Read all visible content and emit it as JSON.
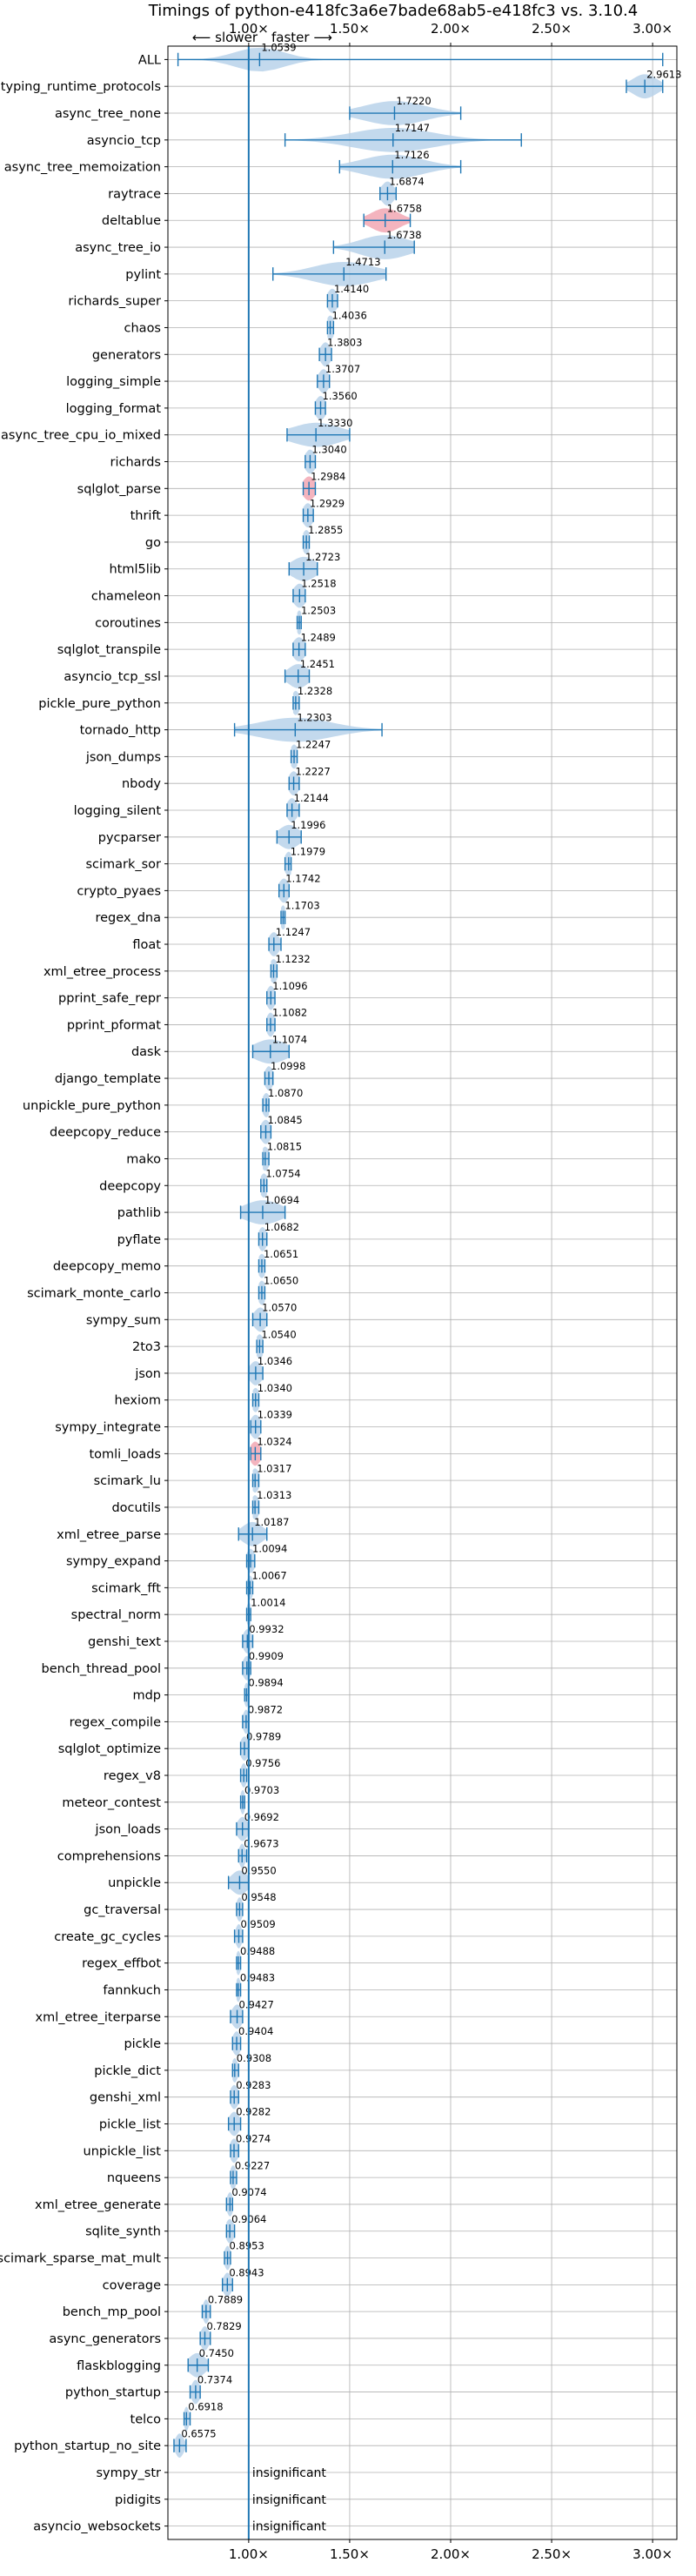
{
  "chart_data": {
    "type": "violin",
    "title": "Timings of python-e418fc3a6e7bade68ab5-e418fc3 vs. 3.10.4",
    "direction_labels": {
      "slower": "⟵ slower",
      "faster": "faster ⟶"
    },
    "xlim": [
      0.6,
      3.12
    ],
    "xticks": [
      1.0,
      1.5,
      2.0,
      2.5,
      3.0
    ],
    "xtick_labels": [
      "1.00×",
      "1.50×",
      "2.00×",
      "2.50×",
      "3.00×"
    ],
    "reference_line": 1.0,
    "grid": true,
    "insignificant_label": "insignificant",
    "colors": {
      "normal": "#1f77b4",
      "normal_fill": "#b9d2ea",
      "regression_fill": "#f2a7b3",
      "grid": "#b0b0b0"
    },
    "benchmarks": [
      {
        "name": "ALL",
        "value": 1.0539,
        "label": "1.0539",
        "min": 0.65,
        "max": 3.05,
        "spread": 0.12
      },
      {
        "name": "typing_runtime_protocols",
        "value": 2.9613,
        "label": "2.9613",
        "min": 2.87,
        "max": 3.05,
        "spread": 0.06
      },
      {
        "name": "async_tree_none",
        "value": 1.722,
        "label": "1.7220",
        "min": 1.5,
        "max": 2.05,
        "spread": 0.15
      },
      {
        "name": "asyncio_tcp",
        "value": 1.7147,
        "label": "1.7147",
        "min": 1.18,
        "max": 2.35,
        "spread": 0.2
      },
      {
        "name": "async_tree_memoization",
        "value": 1.7126,
        "label": "1.7126",
        "min": 1.45,
        "max": 2.05,
        "spread": 0.15
      },
      {
        "name": "raytrace",
        "value": 1.6874,
        "label": "1.6874",
        "min": 1.65,
        "max": 1.73,
        "spread": 0.03
      },
      {
        "name": "deltablue",
        "value": 1.6758,
        "label": "1.6758",
        "min": 1.57,
        "max": 1.8,
        "spread": 0.07,
        "regression": true
      },
      {
        "name": "async_tree_io",
        "value": 1.6738,
        "label": "1.6738",
        "min": 1.42,
        "max": 1.82,
        "spread": 0.12
      },
      {
        "name": "pylint",
        "value": 1.4713,
        "label": "1.4713",
        "min": 1.12,
        "max": 1.68,
        "spread": 0.15
      },
      {
        "name": "richards_super",
        "value": 1.414,
        "label": "1.4140",
        "min": 1.39,
        "max": 1.44,
        "spread": 0.025
      },
      {
        "name": "chaos",
        "value": 1.4036,
        "label": "1.4036",
        "min": 1.39,
        "max": 1.42,
        "spread": 0.02
      },
      {
        "name": "generators",
        "value": 1.3803,
        "label": "1.3803",
        "min": 1.35,
        "max": 1.41,
        "spread": 0.025
      },
      {
        "name": "logging_simple",
        "value": 1.3707,
        "label": "1.3707",
        "min": 1.34,
        "max": 1.4,
        "spread": 0.025
      },
      {
        "name": "logging_format",
        "value": 1.356,
        "label": "1.3560",
        "min": 1.33,
        "max": 1.38,
        "spread": 0.025
      },
      {
        "name": "async_tree_cpu_io_mixed",
        "value": 1.333,
        "label": "1.3330",
        "min": 1.19,
        "max": 1.5,
        "spread": 0.12
      },
      {
        "name": "richards",
        "value": 1.304,
        "label": "1.3040",
        "min": 1.28,
        "max": 1.33,
        "spread": 0.025
      },
      {
        "name": "sqlglot_parse",
        "value": 1.2984,
        "label": "1.2984",
        "min": 1.27,
        "max": 1.33,
        "spread": 0.03,
        "regression": true
      },
      {
        "name": "thrift",
        "value": 1.2929,
        "label": "1.2929",
        "min": 1.27,
        "max": 1.32,
        "spread": 0.025
      },
      {
        "name": "go",
        "value": 1.2855,
        "label": "1.2855",
        "min": 1.27,
        "max": 1.3,
        "spread": 0.02
      },
      {
        "name": "html5lib",
        "value": 1.2723,
        "label": "1.2723",
        "min": 1.2,
        "max": 1.34,
        "spread": 0.06
      },
      {
        "name": "chameleon",
        "value": 1.2518,
        "label": "1.2518",
        "min": 1.22,
        "max": 1.28,
        "spread": 0.03
      },
      {
        "name": "coroutines",
        "value": 1.2503,
        "label": "1.2503",
        "min": 1.24,
        "max": 1.26,
        "spread": 0.015
      },
      {
        "name": "sqlglot_transpile",
        "value": 1.2489,
        "label": "1.2489",
        "min": 1.22,
        "max": 1.28,
        "spread": 0.03
      },
      {
        "name": "asyncio_tcp_ssl",
        "value": 1.2451,
        "label": "1.2451",
        "min": 1.18,
        "max": 1.3,
        "spread": 0.05
      },
      {
        "name": "pickle_pure_python",
        "value": 1.2328,
        "label": "1.2328",
        "min": 1.22,
        "max": 1.25,
        "spread": 0.02
      },
      {
        "name": "tornado_http",
        "value": 1.2303,
        "label": "1.2303",
        "min": 0.93,
        "max": 1.66,
        "spread": 0.18
      },
      {
        "name": "json_dumps",
        "value": 1.2247,
        "label": "1.2247",
        "min": 1.21,
        "max": 1.24,
        "spread": 0.02
      },
      {
        "name": "nbody",
        "value": 1.2227,
        "label": "1.2227",
        "min": 1.2,
        "max": 1.25,
        "spread": 0.025
      },
      {
        "name": "logging_silent",
        "value": 1.2144,
        "label": "1.2144",
        "min": 1.19,
        "max": 1.25,
        "spread": 0.025
      },
      {
        "name": "pycparser",
        "value": 1.1996,
        "label": "1.1996",
        "min": 1.14,
        "max": 1.26,
        "spread": 0.05
      },
      {
        "name": "scimark_sor",
        "value": 1.1979,
        "label": "1.1979",
        "min": 1.18,
        "max": 1.21,
        "spread": 0.02
      },
      {
        "name": "crypto_pyaes",
        "value": 1.1742,
        "label": "1.1742",
        "min": 1.15,
        "max": 1.2,
        "spread": 0.025
      },
      {
        "name": "regex_dna",
        "value": 1.1703,
        "label": "1.1703",
        "min": 1.16,
        "max": 1.18,
        "spread": 0.015
      },
      {
        "name": "float",
        "value": 1.1247,
        "label": "1.1247",
        "min": 1.1,
        "max": 1.16,
        "spread": 0.025
      },
      {
        "name": "xml_etree_process",
        "value": 1.1232,
        "label": "1.1232",
        "min": 1.11,
        "max": 1.14,
        "spread": 0.02
      },
      {
        "name": "pprint_safe_repr",
        "value": 1.1096,
        "label": "1.1096",
        "min": 1.09,
        "max": 1.13,
        "spread": 0.02
      },
      {
        "name": "pprint_pformat",
        "value": 1.1082,
        "label": "1.1082",
        "min": 1.09,
        "max": 1.13,
        "spread": 0.02
      },
      {
        "name": "dask",
        "value": 1.1074,
        "label": "1.1074",
        "min": 1.02,
        "max": 1.2,
        "spread": 0.08
      },
      {
        "name": "django_template",
        "value": 1.0998,
        "label": "1.0998",
        "min": 1.08,
        "max": 1.12,
        "spread": 0.02
      },
      {
        "name": "unpickle_pure_python",
        "value": 1.087,
        "label": "1.0870",
        "min": 1.07,
        "max": 1.1,
        "spread": 0.02
      },
      {
        "name": "deepcopy_reduce",
        "value": 1.0845,
        "label": "1.0845",
        "min": 1.06,
        "max": 1.11,
        "spread": 0.025
      },
      {
        "name": "mako",
        "value": 1.0815,
        "label": "1.0815",
        "min": 1.07,
        "max": 1.1,
        "spread": 0.02
      },
      {
        "name": "deepcopy",
        "value": 1.0754,
        "label": "1.0754",
        "min": 1.06,
        "max": 1.09,
        "spread": 0.02
      },
      {
        "name": "pathlib",
        "value": 1.0694,
        "label": "1.0694",
        "min": 0.96,
        "max": 1.18,
        "spread": 0.09
      },
      {
        "name": "pyflate",
        "value": 1.0682,
        "label": "1.0682",
        "min": 1.05,
        "max": 1.09,
        "spread": 0.02
      },
      {
        "name": "deepcopy_memo",
        "value": 1.0651,
        "label": "1.0651",
        "min": 1.05,
        "max": 1.08,
        "spread": 0.02
      },
      {
        "name": "scimark_monte_carlo",
        "value": 1.065,
        "label": "1.0650",
        "min": 1.05,
        "max": 1.08,
        "spread": 0.02
      },
      {
        "name": "sympy_sum",
        "value": 1.057,
        "label": "1.0570",
        "min": 1.02,
        "max": 1.09,
        "spread": 0.03
      },
      {
        "name": "2to3",
        "value": 1.054,
        "label": "1.0540",
        "min": 1.04,
        "max": 1.07,
        "spread": 0.02
      },
      {
        "name": "json",
        "value": 1.0346,
        "label": "1.0346",
        "min": 1.0,
        "max": 1.07,
        "spread": 0.03
      },
      {
        "name": "hexiom",
        "value": 1.034,
        "label": "1.0340",
        "min": 1.02,
        "max": 1.05,
        "spread": 0.02
      },
      {
        "name": "sympy_integrate",
        "value": 1.0339,
        "label": "1.0339",
        "min": 1.01,
        "max": 1.06,
        "spread": 0.025
      },
      {
        "name": "tomli_loads",
        "value": 1.0324,
        "label": "1.0324",
        "min": 1.01,
        "max": 1.06,
        "spread": 0.025,
        "regression": true
      },
      {
        "name": "scimark_lu",
        "value": 1.0317,
        "label": "1.0317",
        "min": 1.02,
        "max": 1.05,
        "spread": 0.02
      },
      {
        "name": "docutils",
        "value": 1.0313,
        "label": "1.0313",
        "min": 1.02,
        "max": 1.05,
        "spread": 0.02
      },
      {
        "name": "xml_etree_parse",
        "value": 1.0187,
        "label": "1.0187",
        "min": 0.95,
        "max": 1.09,
        "spread": 0.05
      },
      {
        "name": "sympy_expand",
        "value": 1.0094,
        "label": "1.0094",
        "min": 0.99,
        "max": 1.03,
        "spread": 0.02
      },
      {
        "name": "scimark_fft",
        "value": 1.0067,
        "label": "1.0067",
        "min": 0.99,
        "max": 1.02,
        "spread": 0.015
      },
      {
        "name": "spectral_norm",
        "value": 1.0014,
        "label": "1.0014",
        "min": 0.99,
        "max": 1.01,
        "spread": 0.012
      },
      {
        "name": "genshi_text",
        "value": 0.9932,
        "label": "0.9932",
        "min": 0.97,
        "max": 1.02,
        "spread": 0.02
      },
      {
        "name": "bench_thread_pool",
        "value": 0.9909,
        "label": "0.9909",
        "min": 0.97,
        "max": 1.01,
        "spread": 0.02
      },
      {
        "name": "mdp",
        "value": 0.9894,
        "label": "0.9894",
        "min": 0.98,
        "max": 1.0,
        "spread": 0.012
      },
      {
        "name": "regex_compile",
        "value": 0.9872,
        "label": "0.9872",
        "min": 0.97,
        "max": 1.0,
        "spread": 0.015
      },
      {
        "name": "sqlglot_optimize",
        "value": 0.9789,
        "label": "0.9789",
        "min": 0.96,
        "max": 1.0,
        "spread": 0.02
      },
      {
        "name": "regex_v8",
        "value": 0.9756,
        "label": "0.9756",
        "min": 0.96,
        "max": 0.99,
        "spread": 0.015
      },
      {
        "name": "meteor_contest",
        "value": 0.9703,
        "label": "0.9703",
        "min": 0.96,
        "max": 0.98,
        "spread": 0.012
      },
      {
        "name": "json_loads",
        "value": 0.9692,
        "label": "0.9692",
        "min": 0.94,
        "max": 1.0,
        "spread": 0.025
      },
      {
        "name": "comprehensions",
        "value": 0.9673,
        "label": "0.9673",
        "min": 0.95,
        "max": 0.99,
        "spread": 0.015
      },
      {
        "name": "unpickle",
        "value": 0.955,
        "label": "0.9550",
        "min": 0.9,
        "max": 1.0,
        "spread": 0.04
      },
      {
        "name": "gc_traversal",
        "value": 0.9548,
        "label": "0.9548",
        "min": 0.94,
        "max": 0.97,
        "spread": 0.015
      },
      {
        "name": "create_gc_cycles",
        "value": 0.9509,
        "label": "0.9509",
        "min": 0.93,
        "max": 0.97,
        "spread": 0.015
      },
      {
        "name": "regex_effbot",
        "value": 0.9488,
        "label": "0.9488",
        "min": 0.94,
        "max": 0.96,
        "spread": 0.012
      },
      {
        "name": "fannkuch",
        "value": 0.9483,
        "label": "0.9483",
        "min": 0.94,
        "max": 0.96,
        "spread": 0.012
      },
      {
        "name": "xml_etree_iterparse",
        "value": 0.9427,
        "label": "0.9427",
        "min": 0.91,
        "max": 0.97,
        "spread": 0.025
      },
      {
        "name": "pickle",
        "value": 0.9404,
        "label": "0.9404",
        "min": 0.92,
        "max": 0.96,
        "spread": 0.02
      },
      {
        "name": "pickle_dict",
        "value": 0.9308,
        "label": "0.9308",
        "min": 0.92,
        "max": 0.95,
        "spread": 0.015
      },
      {
        "name": "genshi_xml",
        "value": 0.9283,
        "label": "0.9283",
        "min": 0.91,
        "max": 0.95,
        "spread": 0.02
      },
      {
        "name": "pickle_list",
        "value": 0.9282,
        "label": "0.9282",
        "min": 0.9,
        "max": 0.96,
        "spread": 0.025
      },
      {
        "name": "unpickle_list",
        "value": 0.9274,
        "label": "0.9274",
        "min": 0.91,
        "max": 0.95,
        "spread": 0.02
      },
      {
        "name": "nqueens",
        "value": 0.9227,
        "label": "0.9227",
        "min": 0.91,
        "max": 0.94,
        "spread": 0.015
      },
      {
        "name": "xml_etree_generate",
        "value": 0.9074,
        "label": "0.9074",
        "min": 0.89,
        "max": 0.92,
        "spread": 0.015
      },
      {
        "name": "sqlite_synth",
        "value": 0.9064,
        "label": "0.9064",
        "min": 0.89,
        "max": 0.93,
        "spread": 0.02
      },
      {
        "name": "scimark_sparse_mat_mult",
        "value": 0.8953,
        "label": "0.8953",
        "min": 0.88,
        "max": 0.91,
        "spread": 0.015
      },
      {
        "name": "coverage",
        "value": 0.8943,
        "label": "0.8943",
        "min": 0.87,
        "max": 0.92,
        "spread": 0.02
      },
      {
        "name": "bench_mp_pool",
        "value": 0.7889,
        "label": "0.7889",
        "min": 0.77,
        "max": 0.81,
        "spread": 0.015
      },
      {
        "name": "async_generators",
        "value": 0.7829,
        "label": "0.7829",
        "min": 0.76,
        "max": 0.81,
        "spread": 0.02
      },
      {
        "name": "flaskblogging",
        "value": 0.745,
        "label": "0.7450",
        "min": 0.7,
        "max": 0.8,
        "spread": 0.04
      },
      {
        "name": "python_startup",
        "value": 0.7374,
        "label": "0.7374",
        "min": 0.71,
        "max": 0.76,
        "spread": 0.02
      },
      {
        "name": "telco",
        "value": 0.6918,
        "label": "0.6918",
        "min": 0.68,
        "max": 0.71,
        "spread": 0.012
      },
      {
        "name": "python_startup_no_site",
        "value": 0.6575,
        "label": "0.6575",
        "min": 0.63,
        "max": 0.69,
        "spread": 0.02
      },
      {
        "name": "sympy_str",
        "insignificant": true
      },
      {
        "name": "pidigits",
        "insignificant": true
      },
      {
        "name": "asyncio_websockets",
        "insignificant": true
      }
    ]
  }
}
